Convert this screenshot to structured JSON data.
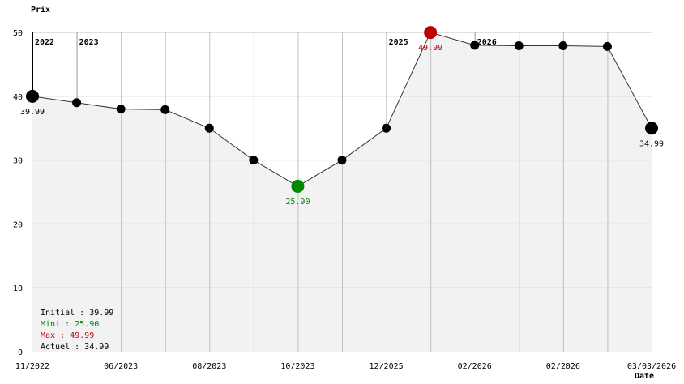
{
  "chart_data": {
    "type": "line",
    "ylabel": "Prix",
    "xlabel": "Date",
    "ylim": [
      0,
      50
    ],
    "yticks": [
      0,
      10,
      20,
      30,
      40,
      50
    ],
    "grid": true,
    "x_tick_labels": [
      "11/2022",
      "06/2023",
      "08/2023",
      "10/2023",
      "12/2025",
      "02/2026",
      "02/2026",
      "03/03/2026"
    ],
    "year_markers": [
      {
        "label": "2022",
        "point_index": 0
      },
      {
        "label": "2023",
        "point_index": 1
      },
      {
        "label": "2025",
        "point_index": 8
      },
      {
        "label": "2026",
        "point_index": 10
      }
    ],
    "values": [
      39.99,
      38.99,
      37.99,
      37.9,
      34.99,
      29.99,
      25.9,
      29.99,
      34.99,
      49.99,
      47.99,
      47.9,
      47.9,
      47.8,
      34.99
    ],
    "point_labels": [
      {
        "index": 0,
        "text": "39.99",
        "kind": "initial"
      },
      {
        "index": 6,
        "text": "25.90",
        "kind": "min"
      },
      {
        "index": 9,
        "text": "49.99",
        "kind": "max"
      },
      {
        "index": 14,
        "text": "34.99",
        "kind": "current"
      }
    ],
    "summary": [
      {
        "text": "Initial : 39.99",
        "kind": "initial"
      },
      {
        "text": "Mini : 25.90",
        "kind": "min"
      },
      {
        "text": "Max : 49.99",
        "kind": "max"
      },
      {
        "text": "Actuel : 34.99",
        "kind": "current"
      }
    ],
    "colors": {
      "line": "#333333",
      "point": "#000000",
      "min": "#008800",
      "max": "#bb0000",
      "fill": "#f2f2f2",
      "grid": "#c0c0c0",
      "year_line": "#999999"
    }
  }
}
